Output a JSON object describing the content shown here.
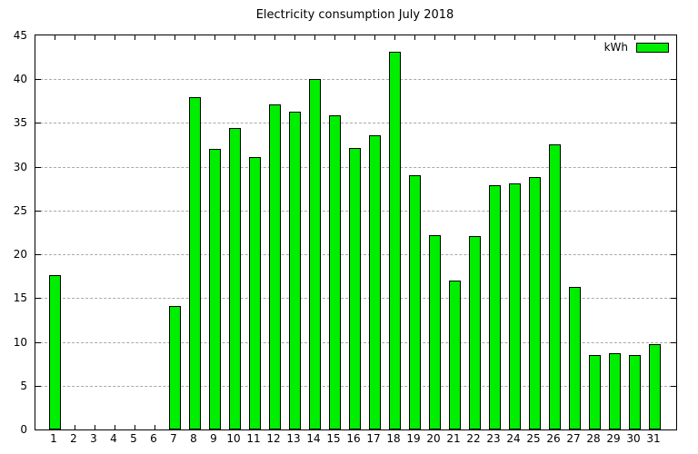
{
  "chart_data": {
    "type": "bar",
    "title": "Electricity consumption July 2018",
    "categories": [
      "1",
      "2",
      "3",
      "4",
      "5",
      "6",
      "7",
      "8",
      "9",
      "10",
      "11",
      "12",
      "13",
      "14",
      "15",
      "16",
      "17",
      "18",
      "19",
      "20",
      "21",
      "22",
      "23",
      "24",
      "25",
      "26",
      "27",
      "28",
      "29",
      "30",
      "31"
    ],
    "values": [
      17.6,
      0,
      0,
      0,
      0,
      0,
      14.1,
      38.0,
      32.0,
      34.4,
      31.1,
      37.1,
      36.3,
      40.0,
      35.9,
      32.1,
      33.6,
      43.1,
      29.0,
      22.2,
      17.0,
      22.1,
      27.9,
      28.1,
      28.8,
      32.6,
      16.3,
      8.5,
      8.7,
      8.5,
      9.7
    ],
    "xlabel": "",
    "ylabel": "",
    "ylim": [
      0,
      45
    ],
    "ytick_step": 5,
    "yticks": [
      0,
      5,
      10,
      15,
      20,
      25,
      30,
      35,
      40,
      45
    ],
    "grid": "horizontal-dashed",
    "legend": {
      "label": "kWh",
      "position": "top-right-inside"
    },
    "colors": {
      "bar_fill": "#00ee00",
      "bar_border": "#000000",
      "grid": "#a9a9a9",
      "axis": "#000000",
      "text": "#000000",
      "background": "#ffffff"
    }
  }
}
